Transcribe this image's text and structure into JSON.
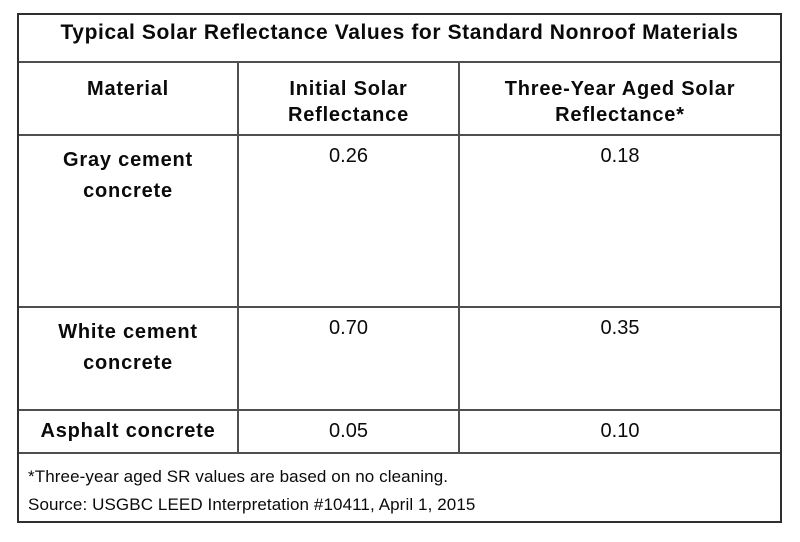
{
  "table": {
    "title": "Typical Solar Reflectance Values for Standard Nonroof Materials",
    "columns": [
      {
        "label": "Material",
        "lines": [
          "Material"
        ]
      },
      {
        "label": "Initial Solar Reflectance",
        "lines": [
          "Initial Solar",
          "Reflectance"
        ]
      },
      {
        "label": "Three-Year Aged Solar Reflectance*",
        "lines": [
          "Three-Year Aged Solar",
          "Reflectance*"
        ]
      }
    ],
    "rows": [
      {
        "material": "Gray cement concrete",
        "material_lines": [
          "Gray cement",
          "concrete"
        ],
        "initial": "0.26",
        "aged": "0.18"
      },
      {
        "material": "White cement concrete",
        "material_lines": [
          "White cement",
          "concrete"
        ],
        "initial": "0.70",
        "aged": "0.35"
      },
      {
        "material": "Asphalt concrete",
        "material_lines": [
          "Asphalt concrete"
        ],
        "initial": "0.05",
        "aged": "0.10"
      }
    ],
    "footnote": "*Three-year aged SR values are based on no cleaning.",
    "source": "Source: USGBC LEED Interpretation #10411, April 1, 2015",
    "colors": {
      "outer_border": "#2f2f2f",
      "inner_border": "#4f4f4f",
      "text": "#0a0a0a",
      "background": "#ffffff"
    }
  }
}
